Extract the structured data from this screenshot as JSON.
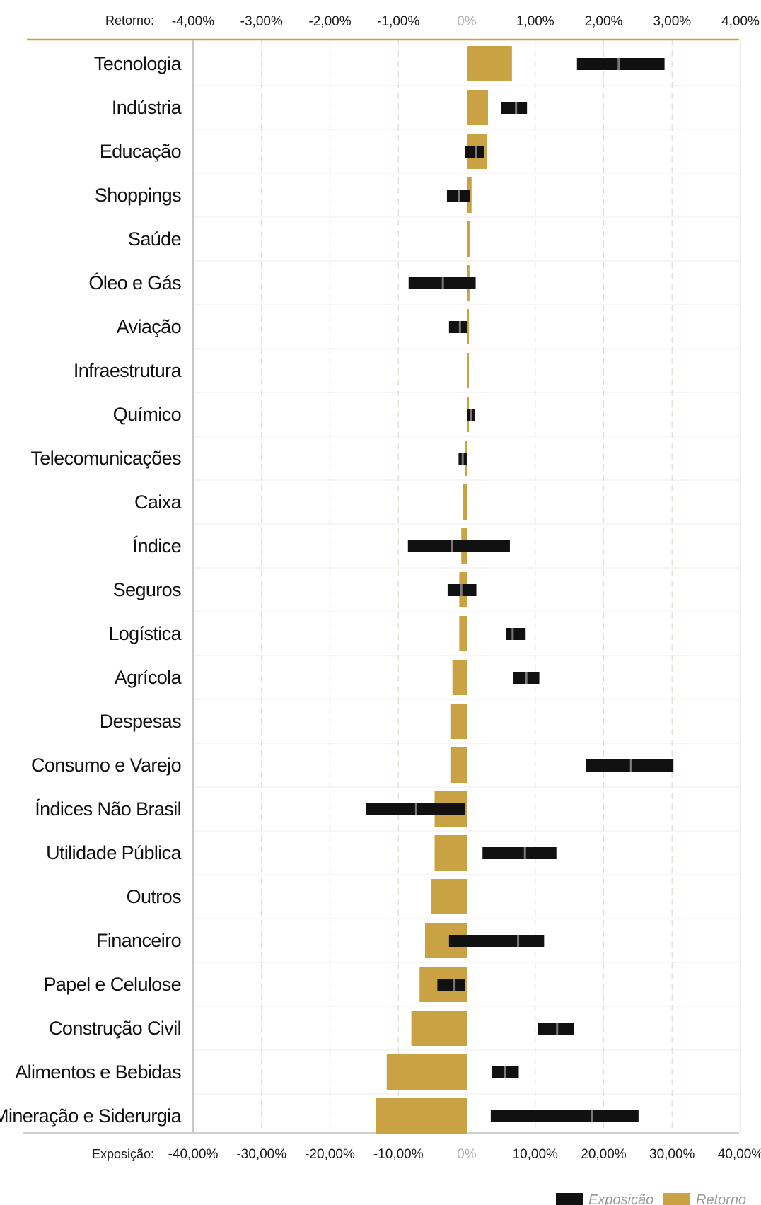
{
  "chart_data": {
    "type": "bar",
    "title": "",
    "categories": [
      "Tecnologia",
      "Indústria",
      "Educação",
      "Shoppings",
      "Saúde",
      "Óleo e Gás",
      "Aviação",
      "Infraestrutura",
      "Químico",
      "Telecomunicações",
      "Caixa",
      "Índice",
      "Seguros",
      "Logística",
      "Agrícola",
      "Despesas",
      "Consumo e Varejo",
      "Índices Não Brasil",
      "Utilidade Pública",
      "Outros",
      "Financeiro",
      "Papel e Celulose",
      "Construção Civil",
      "Alimentos e Bebidas",
      "Mineração e Siderurgia"
    ],
    "top_axis": {
      "label": "Retorno:",
      "range": [
        -4,
        4
      ],
      "ticks": [
        -4,
        -3,
        -2,
        -1,
        0,
        1,
        2,
        3,
        4
      ],
      "tick_labels": [
        "-4,00%",
        "-3,00%",
        "-2,00%",
        "-1,00%",
        "0%",
        "1,00%",
        "2,00%",
        "3,00%",
        "4,00%"
      ]
    },
    "bottom_axis": {
      "label": "Exposição:",
      "range": [
        -40,
        40
      ],
      "ticks": [
        -40,
        -30,
        -20,
        -10,
        0,
        10,
        20,
        30,
        40
      ],
      "tick_labels": [
        "-40,00%",
        "-30,00%",
        "-20,00%",
        "-10,00%",
        "0%",
        "10,00%",
        "20,00%",
        "30,00%",
        "40,00%"
      ]
    },
    "series": [
      {
        "name": "Retorno",
        "type": "bar",
        "unit": "%",
        "color": "#c9a343",
        "values": [
          0.66,
          0.31,
          0.29,
          0.07,
          0.05,
          0.04,
          0.03,
          0.01,
          0.0,
          -0.01,
          -0.06,
          -0.08,
          -0.11,
          -0.11,
          -0.21,
          -0.24,
          -0.24,
          -0.47,
          -0.47,
          -0.52,
          -0.61,
          -0.69,
          -0.81,
          -1.17,
          -1.33
        ]
      },
      {
        "name": "Exposição",
        "type": "range",
        "unit": "%",
        "color": "#111111",
        "min": [
          16.1,
          5.0,
          -0.3,
          -2.9,
          null,
          -8.5,
          -2.6,
          null,
          0.0,
          -1.2,
          null,
          -8.6,
          -2.8,
          5.7,
          6.8,
          null,
          17.4,
          -14.7,
          2.3,
          null,
          -2.6,
          -4.3,
          10.4,
          3.7,
          3.5
        ],
        "max": [
          28.9,
          8.8,
          2.5,
          0.5,
          null,
          1.3,
          0.0,
          null,
          1.2,
          0.0,
          null,
          6.3,
          1.4,
          8.6,
          10.6,
          null,
          30.2,
          -0.2,
          13.1,
          null,
          11.3,
          -0.3,
          15.7,
          7.6,
          25.1
        ],
        "mid": [
          22.2,
          7.2,
          1.3,
          -1.1,
          null,
          -3.5,
          -1.0,
          null,
          0.6,
          -0.6,
          null,
          -2.2,
          -0.8,
          6.7,
          8.7,
          null,
          24.0,
          -7.4,
          8.5,
          null,
          7.5,
          -1.8,
          13.2,
          5.6,
          18.3
        ]
      }
    ],
    "grid": true,
    "legend": {
      "position": "bottom-right",
      "items": [
        {
          "label": "Exposição",
          "color": "#111111"
        },
        {
          "label": "Retorno",
          "color": "#c9a343"
        }
      ]
    }
  }
}
